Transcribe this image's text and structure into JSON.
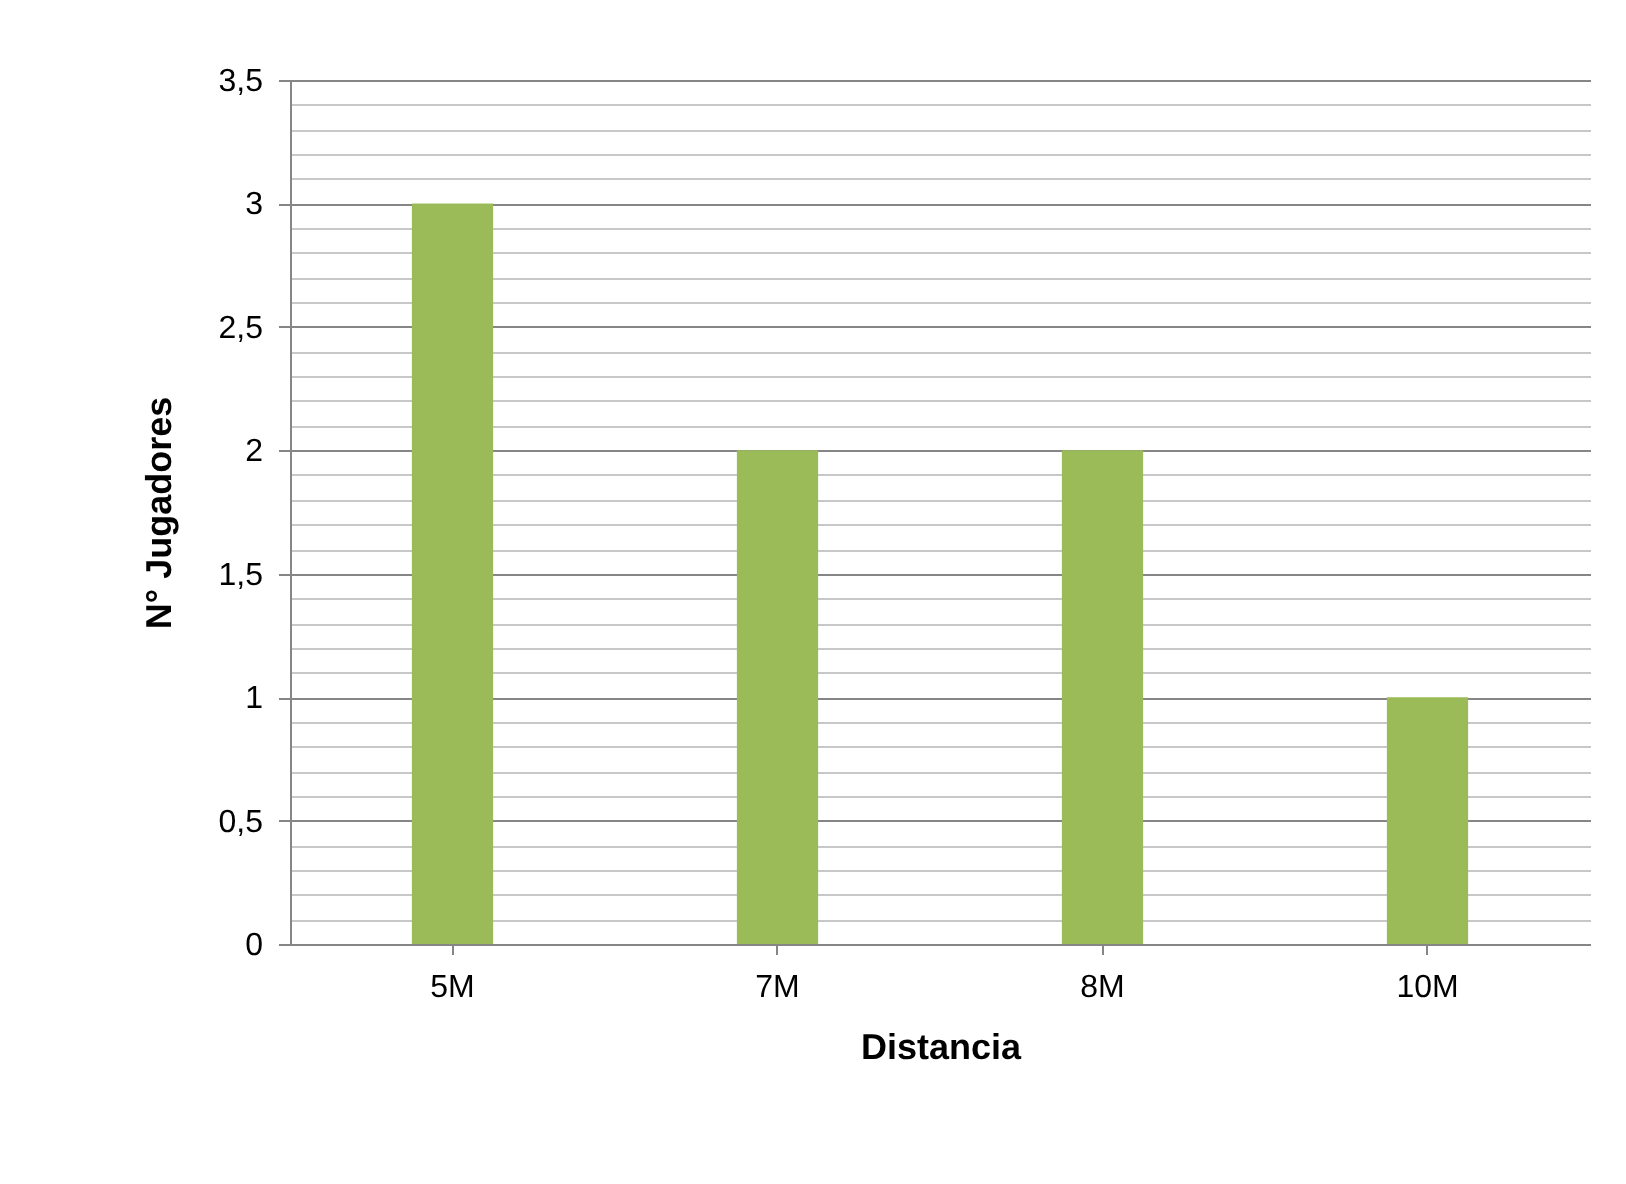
{
  "chart_data": {
    "type": "bar",
    "xlabel": "Distancia",
    "ylabel": "N° Jugadores",
    "categories": [
      "5M",
      "7M",
      "8M",
      "10M"
    ],
    "values": [
      3,
      2,
      2,
      1
    ],
    "color": "#9bbb59",
    "ylim": [
      0,
      3.5
    ],
    "yticks": [
      0,
      {
        "value": 0.1,
        "label": null
      },
      {
        "value": 0.2,
        "label": null
      },
      {
        "value": 0.3,
        "label": null
      },
      {
        "value": 0.4,
        "label": null
      },
      {
        "value": 0.5,
        "label": "0,5"
      },
      {
        "value": 0.6,
        "label": null
      },
      {
        "value": 0.7,
        "label": null
      },
      {
        "value": 0.8,
        "label": null
      },
      {
        "value": 0.9,
        "label": null
      },
      1,
      {
        "value": 1.1,
        "label": null
      },
      {
        "value": 1.2,
        "label": null
      },
      {
        "value": 1.3,
        "label": null
      },
      {
        "value": 1.4,
        "label": null
      },
      {
        "value": 1.5,
        "label": "1,5"
      },
      {
        "value": 1.6,
        "label": null
      },
      {
        "value": 1.7,
        "label": null
      },
      {
        "value": 1.8,
        "label": null
      },
      {
        "value": 1.9,
        "label": null
      },
      2,
      {
        "value": 2.1,
        "label": null
      },
      {
        "value": 2.2,
        "label": null
      },
      {
        "value": 2.3,
        "label": null
      },
      {
        "value": 2.4,
        "label": null
      },
      {
        "value": 2.5,
        "label": "2,5"
      },
      {
        "value": 2.6,
        "label": null
      },
      {
        "value": 2.7,
        "label": null
      },
      {
        "value": 2.8,
        "label": null
      },
      {
        "value": 2.9,
        "label": null
      },
      3,
      {
        "value": 3.1,
        "label": null
      },
      {
        "value": 3.2,
        "label": null
      },
      {
        "value": 3.3,
        "label": null
      },
      {
        "value": 3.4,
        "label": null
      },
      {
        "value": 3.5,
        "label": "3,5"
      }
    ],
    "grid": true
  }
}
